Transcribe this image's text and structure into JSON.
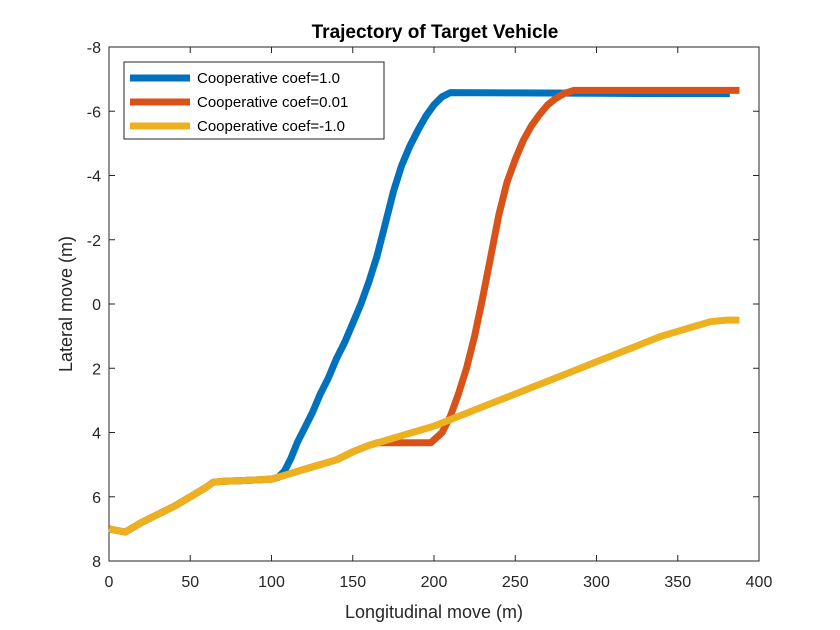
{
  "chart_data": {
    "type": "line",
    "title": "Trajectory of Target Vehicle",
    "xlabel": "Longitudinal move (m)",
    "ylabel": "Lateral move (m)",
    "xlim": [
      0,
      400
    ],
    "ylim": [
      -8,
      8
    ],
    "y_reversed": true,
    "xticks": [
      0,
      50,
      100,
      150,
      200,
      250,
      300,
      350,
      400
    ],
    "yticks": [
      -8,
      -6,
      -4,
      -2,
      0,
      2,
      4,
      6,
      8
    ],
    "grid": false,
    "legend_position": "top-left",
    "series": [
      {
        "name": "Cooperative coef=1.0",
        "color": "#0072BD",
        "points": [
          [
            0,
            7.0
          ],
          [
            5,
            7.05
          ],
          [
            10,
            7.1
          ],
          [
            15,
            6.95
          ],
          [
            20,
            6.8
          ],
          [
            30,
            6.55
          ],
          [
            40,
            6.3
          ],
          [
            50,
            6.0
          ],
          [
            60,
            5.7
          ],
          [
            64,
            5.55
          ],
          [
            70,
            5.52
          ],
          [
            80,
            5.5
          ],
          [
            90,
            5.48
          ],
          [
            100,
            5.45
          ],
          [
            104,
            5.4
          ],
          [
            108,
            5.2
          ],
          [
            112,
            4.8
          ],
          [
            116,
            4.3
          ],
          [
            120,
            3.9
          ],
          [
            125,
            3.4
          ],
          [
            130,
            2.8
          ],
          [
            135,
            2.3
          ],
          [
            140,
            1.7
          ],
          [
            145,
            1.2
          ],
          [
            150,
            0.6
          ],
          [
            155,
            0.0
          ],
          [
            160,
            -0.7
          ],
          [
            165,
            -1.5
          ],
          [
            170,
            -2.5
          ],
          [
            175,
            -3.5
          ],
          [
            180,
            -4.3
          ],
          [
            185,
            -4.9
          ],
          [
            190,
            -5.4
          ],
          [
            195,
            -5.85
          ],
          [
            200,
            -6.2
          ],
          [
            205,
            -6.45
          ],
          [
            210,
            -6.58
          ],
          [
            250,
            -6.57
          ],
          [
            300,
            -6.56
          ],
          [
            350,
            -6.55
          ],
          [
            382,
            -6.55
          ]
        ]
      },
      {
        "name": "Cooperative coef=0.01",
        "color": "#D95319",
        "points": [
          [
            0,
            7.0
          ],
          [
            5,
            7.05
          ],
          [
            10,
            7.1
          ],
          [
            15,
            6.95
          ],
          [
            20,
            6.8
          ],
          [
            30,
            6.55
          ],
          [
            40,
            6.3
          ],
          [
            50,
            6.0
          ],
          [
            60,
            5.7
          ],
          [
            64,
            5.55
          ],
          [
            70,
            5.52
          ],
          [
            80,
            5.5
          ],
          [
            90,
            5.48
          ],
          [
            100,
            5.45
          ],
          [
            110,
            5.3
          ],
          [
            120,
            5.15
          ],
          [
            130,
            5.0
          ],
          [
            140,
            4.85
          ],
          [
            150,
            4.6
          ],
          [
            160,
            4.4
          ],
          [
            165,
            4.32
          ],
          [
            170,
            4.32
          ],
          [
            180,
            4.32
          ],
          [
            190,
            4.32
          ],
          [
            198,
            4.32
          ],
          [
            205,
            4.0
          ],
          [
            210,
            3.5
          ],
          [
            215,
            2.8
          ],
          [
            220,
            2.0
          ],
          [
            225,
            1.0
          ],
          [
            230,
            -0.2
          ],
          [
            235,
            -1.5
          ],
          [
            240,
            -2.8
          ],
          [
            245,
            -3.8
          ],
          [
            250,
            -4.5
          ],
          [
            255,
            -5.1
          ],
          [
            260,
            -5.55
          ],
          [
            265,
            -5.9
          ],
          [
            270,
            -6.2
          ],
          [
            275,
            -6.4
          ],
          [
            280,
            -6.55
          ],
          [
            286,
            -6.65
          ],
          [
            300,
            -6.65
          ],
          [
            350,
            -6.65
          ],
          [
            388,
            -6.65
          ]
        ]
      },
      {
        "name": "Cooperative coef=-1.0",
        "color": "#EDB120",
        "points": [
          [
            0,
            7.0
          ],
          [
            5,
            7.05
          ],
          [
            10,
            7.1
          ],
          [
            15,
            6.95
          ],
          [
            20,
            6.8
          ],
          [
            30,
            6.55
          ],
          [
            40,
            6.3
          ],
          [
            50,
            6.0
          ],
          [
            60,
            5.7
          ],
          [
            64,
            5.55
          ],
          [
            70,
            5.52
          ],
          [
            80,
            5.5
          ],
          [
            90,
            5.48
          ],
          [
            100,
            5.45
          ],
          [
            110,
            5.3
          ],
          [
            120,
            5.15
          ],
          [
            130,
            5.0
          ],
          [
            140,
            4.85
          ],
          [
            150,
            4.6
          ],
          [
            160,
            4.4
          ],
          [
            170,
            4.25
          ],
          [
            180,
            4.1
          ],
          [
            190,
            3.95
          ],
          [
            200,
            3.8
          ],
          [
            210,
            3.6
          ],
          [
            220,
            3.4
          ],
          [
            230,
            3.2
          ],
          [
            240,
            3.0
          ],
          [
            250,
            2.8
          ],
          [
            260,
            2.6
          ],
          [
            270,
            2.4
          ],
          [
            280,
            2.2
          ],
          [
            290,
            2.0
          ],
          [
            300,
            1.8
          ],
          [
            310,
            1.6
          ],
          [
            320,
            1.4
          ],
          [
            330,
            1.2
          ],
          [
            340,
            1.0
          ],
          [
            350,
            0.85
          ],
          [
            360,
            0.7
          ],
          [
            370,
            0.55
          ],
          [
            380,
            0.5
          ],
          [
            388,
            0.5
          ]
        ]
      }
    ]
  }
}
